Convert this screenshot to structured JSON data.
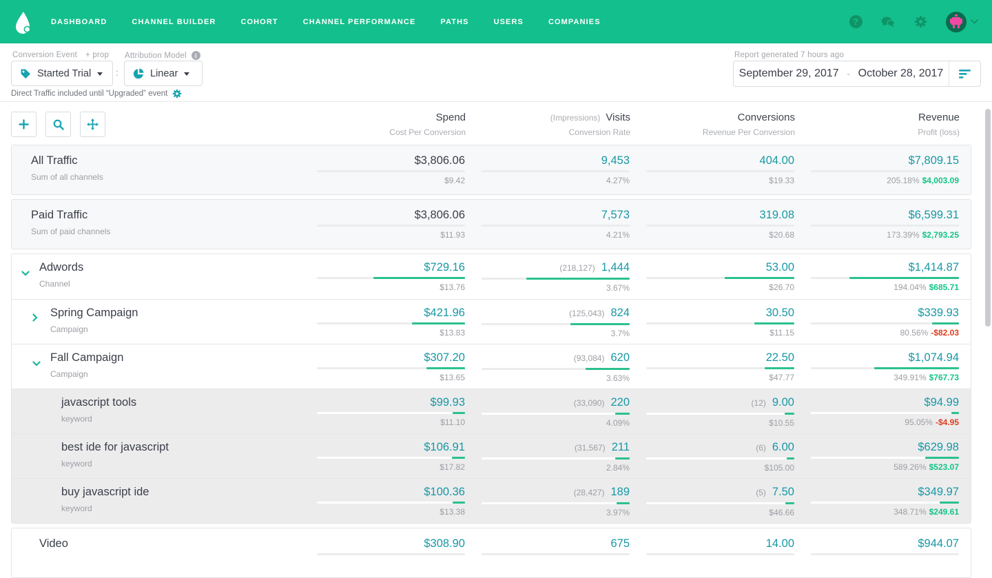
{
  "nav": {
    "items": [
      "DASHBOARD",
      "CHANNEL BUILDER",
      "COHORT",
      "CHANNEL PERFORMANCE",
      "PATHS",
      "USERS",
      "COMPANIES"
    ],
    "right_icons": [
      "help-icon",
      "chat-icon",
      "gear-icon",
      "avatar",
      "caret-down-icon"
    ]
  },
  "filters": {
    "conversion_label": "Conversion Event",
    "conversion_prop": "+ prop",
    "conversion_value": "Started Trial",
    "separator": ":",
    "attribution_label": "Attribution Model",
    "attribution_value": "Linear",
    "note": "Direct Traffic included until “Upgraded” event",
    "report_note": "Report generated 7 hours ago",
    "date_start": "September 29, 2017",
    "date_separator": "-",
    "date_end": "October 28, 2017"
  },
  "toolbar": {
    "buttons": [
      "add",
      "search",
      "move"
    ]
  },
  "table": {
    "columns": [
      {
        "prefix": "",
        "title": "Spend",
        "subtitle": "Cost Per Conversion"
      },
      {
        "prefix": "(Impressions)",
        "title": "Visits",
        "subtitle": "Conversion Rate"
      },
      {
        "prefix": "",
        "title": "Conversions",
        "subtitle": "Revenue Per Conversion"
      },
      {
        "prefix": "",
        "title": "Revenue",
        "subtitle": "Profit (loss)"
      }
    ],
    "sections": [
      {
        "group": false,
        "rows": [
          {
            "name": "All Traffic",
            "subtitle": "Sum of all channels",
            "level": "summary",
            "shade": "summary",
            "chevron": null,
            "cells": [
              {
                "value": "$3,806.06",
                "sub": "$9.42",
                "bar": 0,
                "dark": true
              },
              {
                "prefix": "",
                "value": "9,453",
                "sub": "4.27%",
                "bar": 0
              },
              {
                "prefix": "",
                "value": "404.00",
                "sub": "$19.33",
                "bar": 0
              },
              {
                "value": "$7,809.15",
                "pct": "205.18%",
                "profit": "$4,003.09",
                "neg": false,
                "bar": 0
              }
            ]
          }
        ]
      },
      {
        "group": false,
        "rows": [
          {
            "name": "Paid Traffic",
            "subtitle": "Sum of paid channels",
            "level": "summary",
            "shade": "summary",
            "chevron": null,
            "cells": [
              {
                "value": "$3,806.06",
                "sub": "$11.93",
                "bar": 0,
                "dark": true
              },
              {
                "prefix": "",
                "value": "7,573",
                "sub": "4.21%",
                "bar": 0
              },
              {
                "prefix": "",
                "value": "319.08",
                "sub": "$20.68",
                "bar": 0
              },
              {
                "value": "$6,599.31",
                "pct": "173.39%",
                "profit": "$2,793.25",
                "neg": false,
                "bar": 0
              }
            ]
          }
        ]
      },
      {
        "group": true,
        "rows": [
          {
            "name": "Adwords",
            "subtitle": "Channel",
            "level": "channel",
            "shade": "white",
            "chevron": "down",
            "cells": [
              {
                "value": "$729.16",
                "sub": "$13.76",
                "bar": 0.62
              },
              {
                "prefix": "(218,127)",
                "value": "1,444",
                "sub": "3.67%",
                "bar": 0.7
              },
              {
                "prefix": "",
                "value": "53.00",
                "sub": "$26.70",
                "bar": 0.47
              },
              {
                "value": "$1,414.87",
                "pct": "194.04%",
                "profit": "$685.71",
                "neg": false,
                "bar": 0.74
              }
            ]
          },
          {
            "name": "Spring Campaign",
            "subtitle": "Campaign",
            "level": "campaign",
            "shade": "white",
            "chevron": "right",
            "cells": [
              {
                "value": "$421.96",
                "sub": "$13.83",
                "bar": 0.36
              },
              {
                "prefix": "(125,043)",
                "value": "824",
                "sub": "3.7%",
                "bar": 0.4
              },
              {
                "prefix": "",
                "value": "30.50",
                "sub": "$11.15",
                "bar": 0.27
              },
              {
                "value": "$339.93",
                "pct": "80.56%",
                "profit": "-$82.03",
                "neg": true,
                "bar": 0.18
              }
            ]
          },
          {
            "name": "Fall Campaign",
            "subtitle": "Campaign",
            "level": "campaign",
            "shade": "white",
            "chevron": "down",
            "cells": [
              {
                "value": "$307.20",
                "sub": "$13.65",
                "bar": 0.26
              },
              {
                "prefix": "(93,084)",
                "value": "620",
                "sub": "3.63%",
                "bar": 0.3
              },
              {
                "prefix": "",
                "value": "22.50",
                "sub": "$47.77",
                "bar": 0.2
              },
              {
                "value": "$1,074.94",
                "pct": "349.91%",
                "profit": "$767.73",
                "neg": false,
                "bar": 0.57
              }
            ]
          },
          {
            "name": "javascript tools",
            "subtitle": "keyword",
            "level": "keyword",
            "shade": "gray",
            "chevron": null,
            "cells": [
              {
                "value": "$99.93",
                "sub": "$11.10",
                "bar": 0.085
              },
              {
                "prefix": "(33,090)",
                "value": "220",
                "sub": "4.09%",
                "bar": 0.1
              },
              {
                "prefix": "(12)",
                "value": "9.00",
                "sub": "$10.55",
                "bar": 0.065
              },
              {
                "value": "$94.99",
                "pct": "95.05%",
                "profit": "-$4.95",
                "neg": true,
                "bar": 0.05
              }
            ]
          },
          {
            "name": "best ide for javascript",
            "subtitle": "keyword",
            "level": "keyword",
            "shade": "gray",
            "chevron": null,
            "cells": [
              {
                "value": "$106.91",
                "sub": "$17.82",
                "bar": 0.09
              },
              {
                "prefix": "(31,567)",
                "value": "211",
                "sub": "2.84%",
                "bar": 0.1
              },
              {
                "prefix": "(6)",
                "value": "6.00",
                "sub": "$105.00",
                "bar": 0.05
              },
              {
                "value": "$629.98",
                "pct": "589.26%",
                "profit": "$523.07",
                "neg": false,
                "bar": 0.23
              }
            ]
          },
          {
            "name": "buy javascript ide",
            "subtitle": "keyword",
            "level": "keyword",
            "shade": "gray",
            "chevron": null,
            "cells": [
              {
                "value": "$100.36",
                "sub": "$13.38",
                "bar": 0.085
              },
              {
                "prefix": "(28,427)",
                "value": "189",
                "sub": "3.97%",
                "bar": 0.09
              },
              {
                "prefix": "(5)",
                "value": "7.50",
                "sub": "$46.66",
                "bar": 0.06
              },
              {
                "value": "$349.97",
                "pct": "348.71%",
                "profit": "$249.61",
                "neg": false,
                "bar": 0.13
              }
            ]
          }
        ]
      },
      {
        "group": false,
        "rows": [
          {
            "name": "Video",
            "subtitle": "",
            "level": "channel",
            "shade": "white",
            "chevron": null,
            "cells": [
              {
                "value": "$308.90",
                "sub": "",
                "bar": 0
              },
              {
                "prefix": "",
                "value": "675",
                "sub": "",
                "bar": 0
              },
              {
                "prefix": "",
                "value": "14.00",
                "sub": "",
                "bar": 0
              },
              {
                "value": "$944.07",
                "pct": "",
                "profit": "",
                "neg": false,
                "bar": 0
              }
            ]
          }
        ]
      }
    ]
  },
  "colors": {
    "nav_green": "#13BF8C",
    "teal_text": "#1798A5",
    "icon_teal": "#17A3B0",
    "bar_green": "#2BC18E",
    "positive": "#14C487",
    "negative": "#DF3D1D",
    "avatar_pink": "#F049A4"
  }
}
